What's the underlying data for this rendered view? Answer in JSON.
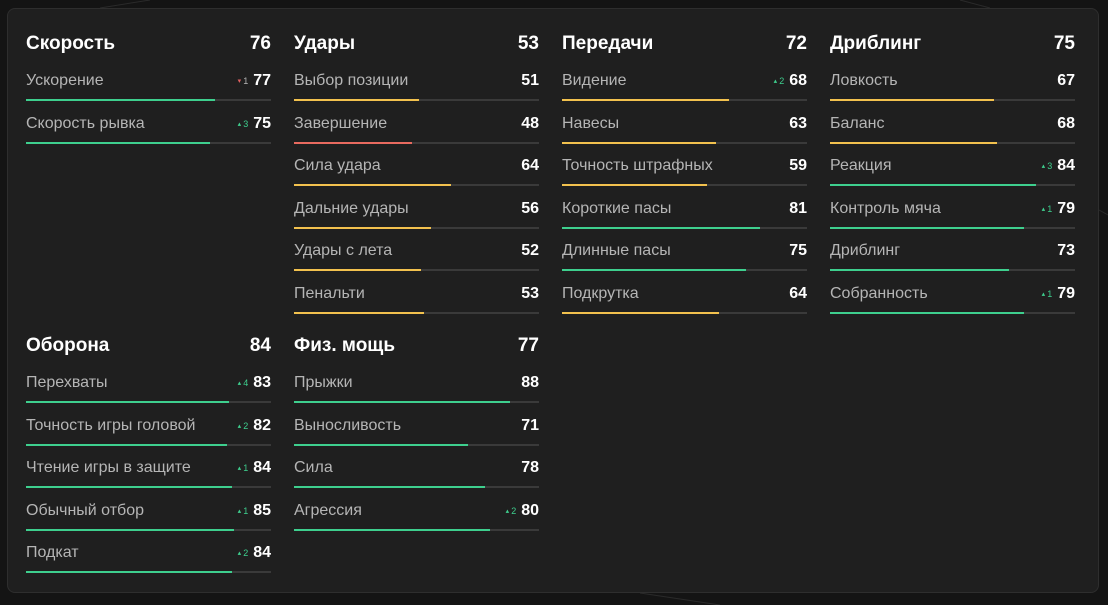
{
  "colors": {
    "high": "#3ecf8e",
    "mid": "#f2c14e",
    "low": "#e86a5f",
    "track": "#3a3a3a"
  },
  "categories": [
    {
      "title": "Скорость",
      "value": 76,
      "attributes": [
        {
          "name": "Ускорение",
          "value": 77,
          "delta": "1",
          "delta_dir": "down"
        },
        {
          "name": "Скорость рывка",
          "value": 75,
          "delta": "3",
          "delta_dir": "up"
        }
      ]
    },
    {
      "title": "Удары",
      "value": 53,
      "attributes": [
        {
          "name": "Выбор позиции",
          "value": 51
        },
        {
          "name": "Завершение",
          "value": 48
        },
        {
          "name": "Сила удара",
          "value": 64
        },
        {
          "name": "Дальние удары",
          "value": 56
        },
        {
          "name": "Удары с лета",
          "value": 52
        },
        {
          "name": "Пенальти",
          "value": 53
        }
      ]
    },
    {
      "title": "Передачи",
      "value": 72,
      "attributes": [
        {
          "name": "Видение",
          "value": 68,
          "delta": "2",
          "delta_dir": "up"
        },
        {
          "name": "Навесы",
          "value": 63
        },
        {
          "name": "Точность штрафных",
          "value": 59
        },
        {
          "name": "Короткие пасы",
          "value": 81
        },
        {
          "name": "Длинные пасы",
          "value": 75
        },
        {
          "name": "Подкрутка",
          "value": 64
        }
      ]
    },
    {
      "title": "Дриблинг",
      "value": 75,
      "attributes": [
        {
          "name": "Ловкость",
          "value": 67
        },
        {
          "name": "Баланс",
          "value": 68
        },
        {
          "name": "Реакция",
          "value": 84,
          "delta": "3",
          "delta_dir": "up"
        },
        {
          "name": "Контроль мяча",
          "value": 79,
          "delta": "1",
          "delta_dir": "up"
        },
        {
          "name": "Дриблинг",
          "value": 73
        },
        {
          "name": "Собранность",
          "value": 79,
          "delta": "1",
          "delta_dir": "up"
        }
      ]
    },
    {
      "title": "Оборона",
      "value": 84,
      "attributes": [
        {
          "name": "Перехваты",
          "value": 83,
          "delta": "4",
          "delta_dir": "up"
        },
        {
          "name": "Точность игры головой",
          "value": 82,
          "delta": "2",
          "delta_dir": "up"
        },
        {
          "name": "Чтение игры в защите",
          "value": 84,
          "delta": "1",
          "delta_dir": "up"
        },
        {
          "name": "Обычный отбор",
          "value": 85,
          "delta": "1",
          "delta_dir": "up"
        },
        {
          "name": "Подкат",
          "value": 84,
          "delta": "2",
          "delta_dir": "up"
        }
      ]
    },
    {
      "title": "Физ. мощь",
      "value": 77,
      "attributes": [
        {
          "name": "Прыжки",
          "value": 88
        },
        {
          "name": "Выносливость",
          "value": 71
        },
        {
          "name": "Сила",
          "value": 78
        },
        {
          "name": "Агрессия",
          "value": 80,
          "delta": "2",
          "delta_dir": "up"
        }
      ]
    }
  ]
}
